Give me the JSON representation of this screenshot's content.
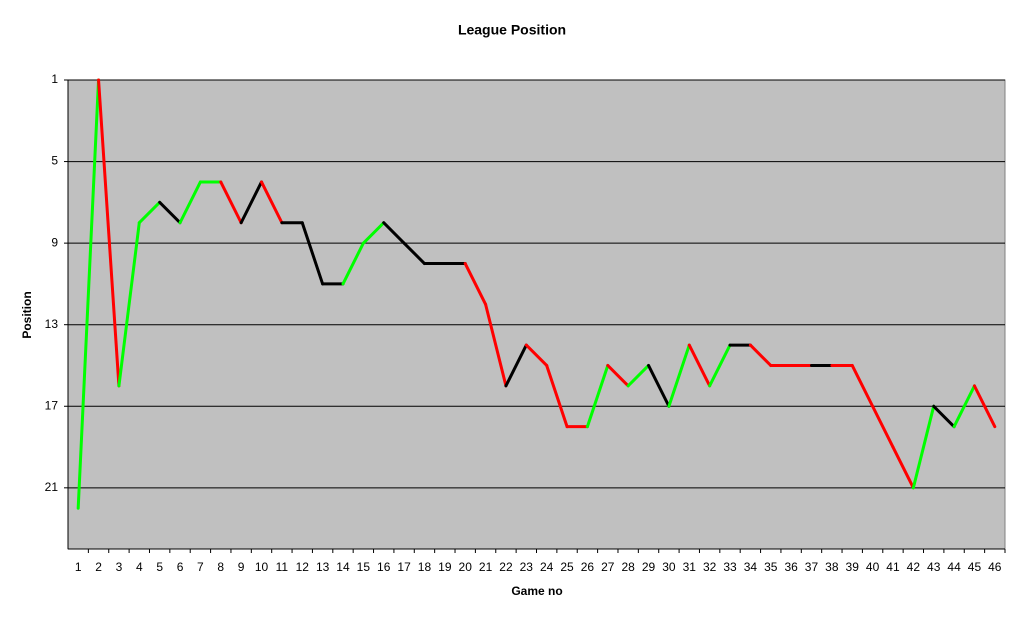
{
  "chart_data": {
    "type": "line",
    "title": "League Position",
    "x_label": "Game no",
    "y_label": "Position",
    "categories": [
      1,
      2,
      3,
      4,
      5,
      6,
      7,
      8,
      9,
      10,
      11,
      12,
      13,
      14,
      15,
      16,
      17,
      18,
      19,
      20,
      21,
      22,
      23,
      24,
      25,
      26,
      27,
      28,
      29,
      30,
      31,
      32,
      33,
      34,
      35,
      36,
      37,
      38,
      39,
      40,
      41,
      42,
      43,
      44,
      45,
      46
    ],
    "values": [
      22,
      1,
      16,
      8,
      7,
      8,
      6,
      6,
      8,
      6,
      8,
      8,
      11,
      11,
      9,
      8,
      9,
      10,
      10,
      10,
      12,
      16,
      14,
      15,
      18,
      18,
      15,
      16,
      15,
      17,
      14,
      16,
      14,
      14,
      15,
      15,
      15,
      15,
      15,
      17,
      19,
      21,
      17,
      18,
      16,
      18
    ],
    "segment_colors": [
      null,
      "#00ff00",
      "#ff0000",
      "#00ff00",
      "#00ff00",
      "#000000",
      "#00ff00",
      "#00ff00",
      "#ff0000",
      "#000000",
      "#ff0000",
      "#000000",
      "#000000",
      "#000000",
      "#00ff00",
      "#00ff00",
      "#000000",
      "#000000",
      "#000000",
      "#000000",
      "#ff0000",
      "#ff0000",
      "#000000",
      "#ff0000",
      "#ff0000",
      "#ff0000",
      "#00ff00",
      "#ff0000",
      "#00ff00",
      "#000000",
      "#00ff00",
      "#ff0000",
      "#00ff00",
      "#000000",
      "#ff0000",
      "#ff0000",
      "#ff0000",
      "#000000",
      "#ff0000",
      "#ff0000",
      "#ff0000",
      "#ff0000",
      "#00ff00",
      "#000000",
      "#00ff00",
      "#ff0000"
    ],
    "ylim": [
      24,
      1
    ],
    "yticks": [
      1,
      5,
      9,
      13,
      17,
      21
    ],
    "grid": true,
    "plot_background": "#c0c0c0"
  }
}
